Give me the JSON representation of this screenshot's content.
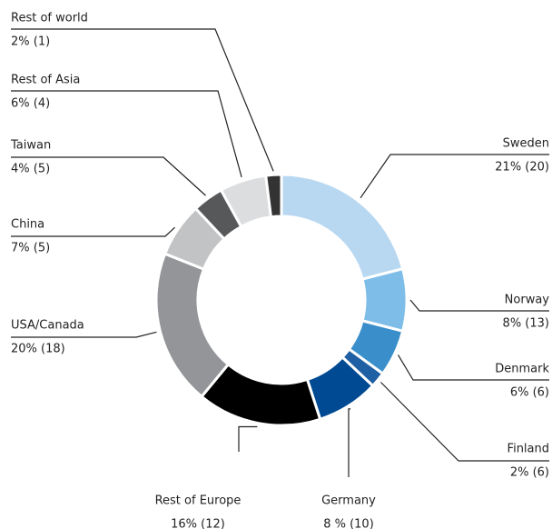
{
  "chart_data": {
    "type": "donut",
    "categories": [
      "Sweden",
      "Norway",
      "Denmark",
      "Finland",
      "Germany",
      "Rest of Europe",
      "USA/Canada",
      "China",
      "Taiwan",
      "Rest of Asia",
      "Rest of world"
    ],
    "values": [
      21,
      8,
      6,
      2,
      8,
      16,
      20,
      7,
      4,
      6,
      2
    ],
    "value_labels": [
      "21% (20)",
      "8% (13)",
      "6% (6)",
      "2% (6)",
      "8 % (10)",
      "16% (12)",
      "20% (18)",
      "7% (5)",
      "4% (5)",
      "6% (4)",
      "2% (1)"
    ],
    "colors": [
      "#b8d8f2",
      "#7dbde8",
      "#3a8fcb",
      "#1f5fa3",
      "#004a93",
      "#000000",
      "#939598",
      "#c2c3c5",
      "#57585a",
      "#dcddde",
      "#333333"
    ]
  }
}
